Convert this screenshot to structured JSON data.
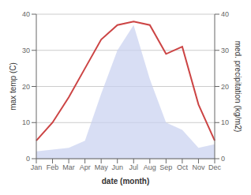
{
  "chart_data": {
    "type": "line",
    "categories": [
      "Jan",
      "Feb",
      "Mar",
      "Apr",
      "May",
      "Jun",
      "Jul",
      "Aug",
      "Sep",
      "Oct",
      "Nov",
      "Dec"
    ],
    "series": [
      {
        "type": "area",
        "axis": "y2",
        "color": "#c8d0f0",
        "values": [
          2,
          2.5,
          3,
          5,
          18,
          30,
          37,
          22,
          10,
          8,
          3,
          4
        ]
      },
      {
        "type": "line",
        "color": "#cc4444",
        "values": [
          5,
          10,
          17,
          25,
          33,
          37,
          38,
          37,
          29,
          31,
          15,
          5
        ]
      }
    ],
    "x_label": "date (month)",
    "y_label": "max temp (C)",
    "y2_label": "med. precipitation (kg/m2)",
    "ylim": [
      0,
      40
    ],
    "yticks": [
      0,
      10,
      20,
      30,
      40
    ],
    "y2lim": [
      0,
      40
    ],
    "y2ticks": [
      0,
      10,
      20,
      30,
      40
    ],
    "grid": true
  }
}
